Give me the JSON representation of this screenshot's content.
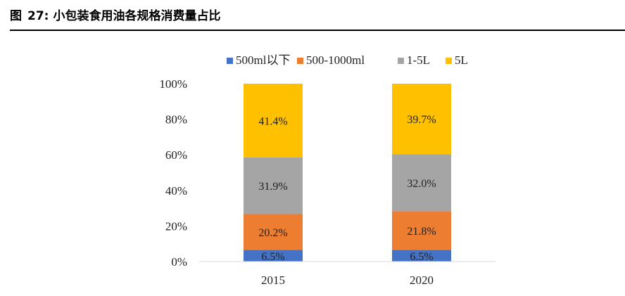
{
  "figure": {
    "label": "图",
    "number": "27:",
    "title": "小包装食用油各规格消费量占比"
  },
  "colors": {
    "500ml以下": "#4472c4",
    "500-1000ml": "#ed7d31",
    "1-5L": "#a5a5a5",
    "5L": "#ffc000"
  },
  "chart_data": {
    "type": "bar",
    "stacked": true,
    "categories": [
      "2015",
      "2020"
    ],
    "series": [
      {
        "name": "500ml以下",
        "values": [
          6.5,
          6.5
        ]
      },
      {
        "name": "500-1000ml",
        "values": [
          20.2,
          21.8
        ]
      },
      {
        "name": "1-5L",
        "values": [
          31.9,
          32.0
        ]
      },
      {
        "name": "5L",
        "values": [
          41.4,
          39.7
        ]
      }
    ],
    "data_labels": [
      [
        "6.5%",
        "6.5%"
      ],
      [
        "20.2%",
        "21.8%"
      ],
      [
        "31.9%",
        "32.0%"
      ],
      [
        "41.4%",
        "39.7%"
      ]
    ],
    "y_ticks": [
      "0%",
      "20%",
      "40%",
      "60%",
      "80%",
      "100%"
    ],
    "ylim": [
      0,
      100
    ],
    "legend_position": "top",
    "grid": false
  }
}
